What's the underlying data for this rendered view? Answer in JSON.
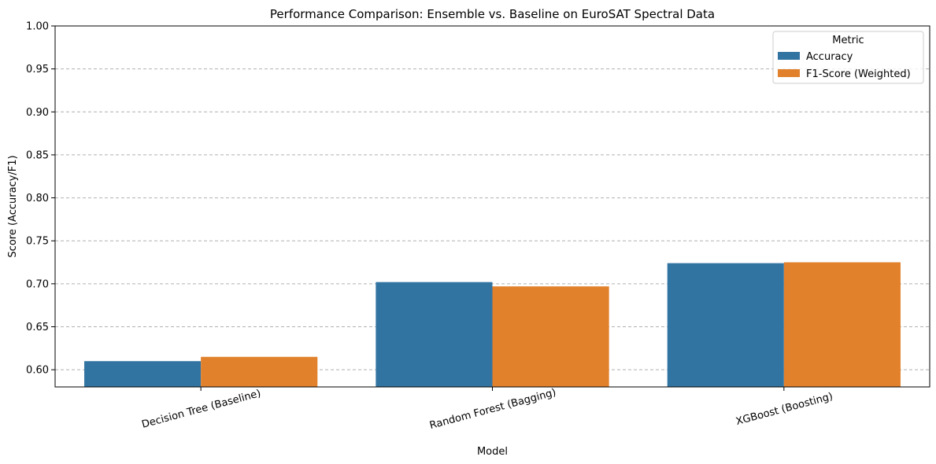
{
  "chart_data": {
    "type": "bar",
    "title": "Performance Comparison: Ensemble vs. Baseline on EuroSAT Spectral Data",
    "xlabel": "Model",
    "ylabel": "Score (Accuracy/F1)",
    "categories": [
      "Decision Tree (Baseline)",
      "Random Forest (Bagging)",
      "XGBoost (Boosting)"
    ],
    "series": [
      {
        "name": "Accuracy",
        "values": [
          0.61,
          0.702,
          0.724
        ],
        "color": "#3274a1"
      },
      {
        "name": "F1-Score (Weighted)",
        "values": [
          0.615,
          0.697,
          0.725
        ],
        "color": "#e1812c"
      }
    ],
    "ylim": [
      0.58,
      1.0
    ],
    "yticks": [
      "0.60",
      "0.65",
      "0.70",
      "0.75",
      "0.80",
      "0.85",
      "0.90",
      "0.95",
      "1.00"
    ],
    "grid": "y-dashed",
    "legend": {
      "title": "Metric",
      "position": "top-right"
    }
  }
}
